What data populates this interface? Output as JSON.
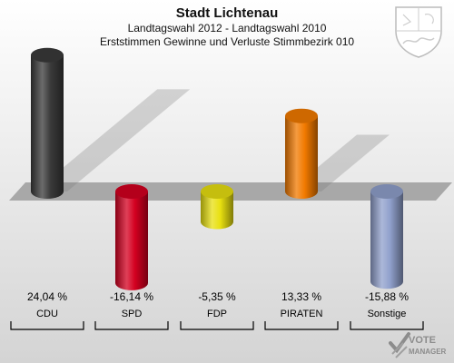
{
  "chart_data": {
    "type": "bar",
    "title": "Stadt Lichtenau",
    "subtitle1": "Landtagswahl 2012 - Landtagswahl 2010",
    "subtitle2": "Erststimmen Gewinne und Verluste Stimmbezirk 010",
    "categories": [
      "CDU",
      "SPD",
      "FDP",
      "PIRATEN",
      "Sonstige"
    ],
    "values": [
      24.04,
      -16.14,
      -5.35,
      13.33,
      -15.88
    ],
    "value_labels": [
      "24,04 %",
      "-16,14 %",
      "-5,35 %",
      "13,33 %",
      "-15,88 %"
    ],
    "colors": [
      "#3a3a3a",
      "#d40020",
      "#e8e010",
      "#f27a00",
      "#90a0cc"
    ],
    "ylim": [
      -18,
      27
    ]
  },
  "watermark": {
    "line1": "VOTE",
    "line2": "MANAGER"
  }
}
